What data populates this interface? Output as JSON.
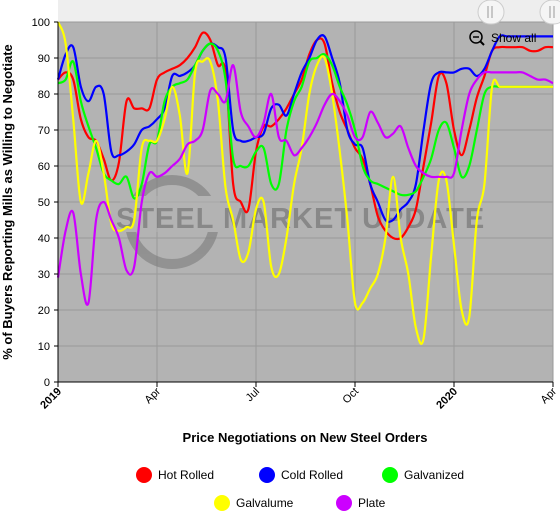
{
  "chart_data": {
    "type": "line",
    "title": "",
    "xlabel": "Price Negotiations on New Steel Orders",
    "ylabel": "% of Buyers Reporting Mills as Willing to Negotiate",
    "ylim": [
      0,
      100
    ],
    "yticks": [
      "0",
      "10",
      "20",
      "30",
      "40",
      "50",
      "60",
      "70",
      "80",
      "90",
      "100"
    ],
    "xticks": [
      {
        "label": "2019",
        "bold": true,
        "x": 0
      },
      {
        "label": "Apr",
        "bold": false,
        "x": 13
      },
      {
        "label": "Jul",
        "bold": false,
        "x": 26
      },
      {
        "label": "Oct",
        "bold": false,
        "x": 39
      },
      {
        "label": "2020",
        "bold": true,
        "x": 52
      },
      {
        "label": "Apr",
        "bold": false,
        "x": 65
      }
    ],
    "xlim": [
      0,
      65
    ],
    "grid": true,
    "legend_position": "bottom",
    "watermark": "STEEL MARKET UPDATE",
    "x": [
      0,
      1,
      2,
      3,
      4,
      5,
      6,
      7,
      8,
      9,
      10,
      11,
      12,
      13,
      14,
      15,
      16,
      17,
      18,
      19,
      20,
      21,
      22,
      23,
      24,
      25,
      26,
      27,
      28,
      29,
      30,
      31,
      32,
      33,
      34,
      35,
      36,
      37,
      38,
      39,
      40,
      41,
      42,
      43,
      44,
      45,
      46,
      47,
      48,
      49,
      50,
      51,
      52,
      53,
      54,
      55,
      56,
      57,
      58,
      59,
      60,
      61,
      62,
      63,
      64,
      65
    ],
    "series": [
      {
        "name": "Hot Rolled",
        "color": "#ff0000",
        "values": [
          84,
          86,
          84,
          73,
          68,
          67,
          62,
          56,
          61,
          78,
          76,
          76,
          76,
          84,
          86,
          87,
          88,
          90,
          93,
          97,
          95,
          88,
          86,
          55,
          50,
          48,
          64,
          71,
          71,
          73,
          76,
          80,
          84,
          91,
          95,
          94,
          83,
          75,
          70,
          65,
          62,
          55,
          46,
          42,
          40,
          40,
          43,
          48,
          60,
          72,
          85,
          83,
          70,
          63,
          70,
          79,
          85,
          92,
          93,
          93,
          93,
          93,
          92,
          92,
          93,
          93
        ]
      },
      {
        "name": "Cold Rolled",
        "color": "#0000ff",
        "values": [
          84,
          91,
          93,
          82,
          78,
          82,
          80,
          64,
          63,
          64,
          66,
          70,
          71,
          73,
          76,
          85,
          85,
          86,
          88,
          92,
          94,
          93,
          90,
          70,
          67,
          67,
          68,
          69,
          76,
          77,
          74,
          80,
          86,
          90,
          95,
          96,
          90,
          83,
          70,
          66,
          65,
          55,
          50,
          45,
          45,
          48,
          50,
          55,
          70,
          83,
          86,
          86,
          86,
          87,
          87,
          85,
          87,
          92,
          96,
          96,
          96,
          96,
          96,
          96,
          96,
          96
        ]
      },
      {
        "name": "Galvanized",
        "color": "#00ff00",
        "values": [
          83,
          84,
          89,
          78,
          71,
          65,
          58,
          56,
          55,
          57,
          51,
          55,
          66,
          67,
          78,
          82,
          83,
          84,
          88,
          92,
          94,
          92,
          84,
          62,
          60,
          60,
          64,
          65,
          55,
          55,
          70,
          78,
          82,
          89,
          90,
          91,
          88,
          82,
          77,
          70,
          60,
          56,
          55,
          54,
          53,
          52,
          52,
          53,
          57,
          62,
          70,
          72,
          65,
          57,
          60,
          70,
          80,
          82,
          82,
          82,
          82,
          82,
          82,
          82,
          82,
          82
        ]
      },
      {
        "name": "Galvalume",
        "color": "#ffff00",
        "values": [
          100,
          94,
          73,
          50,
          58,
          67,
          58,
          44,
          42,
          43,
          45,
          65,
          67,
          67,
          73,
          82,
          74,
          58,
          86,
          89,
          89,
          78,
          54,
          45,
          34,
          36,
          48,
          50,
          32,
          30,
          40,
          55,
          65,
          80,
          88,
          90,
          80,
          64,
          45,
          22,
          22,
          26,
          30,
          40,
          57,
          40,
          30,
          15,
          12,
          35,
          56,
          56,
          38,
          20,
          18,
          45,
          55,
          82,
          82,
          82,
          82,
          82,
          82,
          82,
          82,
          82
        ]
      },
      {
        "name": "Plate",
        "color": "#cc00ff",
        "values": [
          29,
          42,
          47,
          30,
          22,
          45,
          50,
          45,
          40,
          31,
          32,
          50,
          58,
          57,
          58,
          60,
          62,
          66,
          67,
          70,
          81,
          80,
          78,
          88,
          75,
          71,
          68,
          72,
          80,
          68,
          67,
          63,
          65,
          68,
          72,
          77,
          80,
          78,
          74,
          68,
          68,
          75,
          72,
          68,
          69,
          71,
          65,
          60,
          58,
          57,
          57,
          57,
          58,
          70,
          80,
          84,
          86,
          86,
          86,
          86,
          86,
          86,
          85,
          84,
          84,
          83
        ]
      }
    ]
  },
  "controls": {
    "show_all_label": "Show all"
  }
}
